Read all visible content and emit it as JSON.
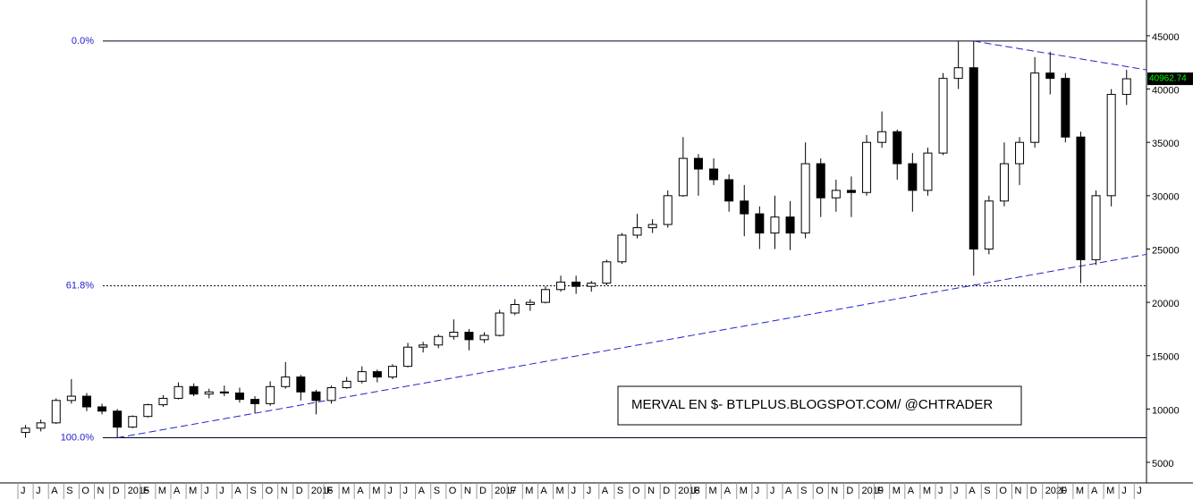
{
  "chart_data": {
    "type": "candlestick",
    "categories": [
      "J",
      "J",
      "A",
      "S",
      "O",
      "N",
      "D",
      "2015",
      "F",
      "M",
      "A",
      "M",
      "J",
      "J",
      "A",
      "S",
      "O",
      "N",
      "D",
      "2016",
      "F",
      "M",
      "A",
      "M",
      "J",
      "J",
      "A",
      "S",
      "O",
      "N",
      "D",
      "2017",
      "F",
      "M",
      "A",
      "M",
      "J",
      "J",
      "A",
      "S",
      "O",
      "N",
      "D",
      "2018",
      "F",
      "M",
      "A",
      "M",
      "J",
      "J",
      "A",
      "S",
      "O",
      "N",
      "D",
      "2019",
      "F",
      "M",
      "A",
      "M",
      "J",
      "J",
      "A",
      "S",
      "O",
      "N",
      "D",
      "2020",
      "F",
      "M",
      "A",
      "M",
      "J",
      "J"
    ],
    "series": [
      {
        "open": [
          7800,
          8200,
          8700,
          10800,
          11200,
          10200,
          9800,
          8300,
          9300,
          10400,
          11000,
          12100,
          11400,
          11600,
          11500,
          10900,
          10500,
          12100,
          13000,
          11600,
          10800,
          12000,
          12600,
          13500,
          13000,
          14000,
          15800,
          16000,
          16800,
          17200,
          16500,
          16900,
          19000,
          19800,
          20000,
          21200,
          21900,
          21500,
          21800,
          23800,
          26300,
          27000,
          27300,
          30000,
          33500,
          32500,
          31500,
          29500,
          28300,
          26500,
          28000,
          26500,
          33000,
          29800,
          30500,
          30300,
          35000,
          36000,
          33000,
          30500,
          34000,
          41000,
          42000,
          25000,
          29500,
          33000,
          35000,
          41500,
          41000,
          35500,
          24000,
          30000,
          39500,
          null
        ],
        "high": [
          8500,
          9000,
          11000,
          12800,
          11500,
          10500,
          10000,
          9400,
          10500,
          11300,
          12500,
          12400,
          11900,
          12200,
          12000,
          11200,
          12600,
          14400,
          13200,
          11800,
          12200,
          13000,
          14000,
          13700,
          14200,
          16200,
          16300,
          17000,
          18400,
          17500,
          17200,
          19300,
          20300,
          20300,
          21500,
          22500,
          22500,
          22000,
          24000,
          26500,
          28300,
          27800,
          30500,
          35500,
          33900,
          33500,
          32000,
          31000,
          29000,
          30000,
          29500,
          35000,
          33500,
          31500,
          31800,
          35700,
          37900,
          36200,
          34000,
          34500,
          41500,
          44500,
          44500,
          30000,
          35000,
          35500,
          43000,
          43500,
          41500,
          36000,
          30500,
          40000,
          41800,
          null
        ],
        "low": [
          7300,
          7900,
          8600,
          10500,
          9800,
          9500,
          7300,
          8200,
          9200,
          10200,
          10900,
          11200,
          11000,
          11200,
          10600,
          9600,
          10300,
          11900,
          10800,
          9500,
          10500,
          11900,
          12400,
          12500,
          12800,
          13900,
          15300,
          15700,
          16500,
          15500,
          16200,
          16800,
          18800,
          19200,
          19900,
          21000,
          20800,
          21000,
          21600,
          23600,
          26000,
          26500,
          27000,
          29900,
          30000,
          31000,
          28500,
          26200,
          25000,
          25000,
          24900,
          26000,
          28000,
          28500,
          28000,
          30000,
          34500,
          31500,
          28500,
          30000,
          33800,
          40000,
          22500,
          24500,
          29000,
          31000,
          34500,
          39500,
          35000,
          21800,
          23500,
          29000,
          38500,
          null
        ],
        "close": [
          8200,
          8700,
          10800,
          11200,
          10200,
          9800,
          8300,
          9300,
          10400,
          11000,
          12100,
          11400,
          11600,
          11500,
          10900,
          10500,
          12100,
          13000,
          11600,
          10800,
          12000,
          12600,
          13500,
          13000,
          14000,
          15800,
          16000,
          16800,
          17200,
          16500,
          16900,
          19000,
          19800,
          20000,
          21200,
          21900,
          21500,
          21800,
          23800,
          26300,
          27000,
          27300,
          30000,
          33500,
          32500,
          31500,
          29500,
          28300,
          26500,
          28000,
          26500,
          33000,
          29800,
          30500,
          30300,
          35000,
          36000,
          33000,
          30500,
          34000,
          41000,
          42000,
          25000,
          29500,
          33000,
          35000,
          41500,
          41000,
          35500,
          24000,
          30000,
          39500,
          40963,
          null
        ],
        "last_label": "40962.74"
      }
    ],
    "ylim": [
      3070,
      48350
    ],
    "yticks": [
      5000,
      10000,
      15000,
      20000,
      25000,
      30000,
      35000,
      40000,
      45000
    ],
    "levels": [
      {
        "label": "0.0%",
        "value": 44500
      },
      {
        "label": "61.8%",
        "value": 21550
      },
      {
        "label": "100.0%",
        "value": 7300
      }
    ],
    "trendlines": [
      {
        "y": [
          7300,
          24500
        ]
      },
      {
        "y": [
          44500,
          41800
        ]
      }
    ],
    "annotation": "MERVAL EN $- BTLPLUS.BLOGSPOT.COM/ @CHTRADER"
  }
}
